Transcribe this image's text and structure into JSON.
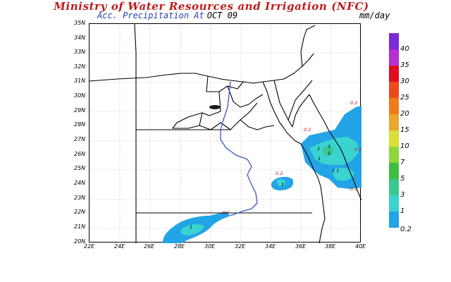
{
  "header": {
    "title": "Ministry of Water Resources and Irrigation (NFC)",
    "subtitle_label": "Acc. Precipitation At",
    "date": "OCT 09",
    "units": "mm/day"
  },
  "axes": {
    "lat_labels": [
      "35N",
      "34N",
      "33N",
      "32N",
      "31N",
      "30N",
      "29N",
      "28N",
      "27N",
      "26N",
      "25N",
      "24N",
      "23N",
      "22N",
      "21N",
      "20N"
    ],
    "lon_labels": [
      "22E",
      "24E",
      "26E",
      "28E",
      "30E",
      "32E",
      "34E",
      "36E",
      "38E",
      "40E"
    ]
  },
  "legend": {
    "labels": [
      "40",
      "35",
      "30",
      "25",
      "20",
      "15",
      "10",
      "7",
      "5",
      "3",
      "1",
      "0.2"
    ],
    "colors": [
      "#7a2ad6",
      "#b52fd3",
      "#e00d1f",
      "#ec4a1c",
      "#ef7b1a",
      "#e9a82d",
      "#d9df36",
      "#8dd63b",
      "#3dbd43",
      "#39c88f",
      "#3ad3d0",
      "#22a4e6"
    ]
  },
  "contour_labels": {
    "northeast_top": "0.2",
    "red_sea_west": "0.2",
    "east_center": "1",
    "east_mid": "3",
    "east_box": "5",
    "east_low": "1",
    "east_pair": "1 1",
    "east_right": "0.2",
    "east_bottom": "0.2",
    "center_east_small": "0.2",
    "center_east_inner": "1",
    "southwest": "1",
    "south_center": "0.2"
  }
}
